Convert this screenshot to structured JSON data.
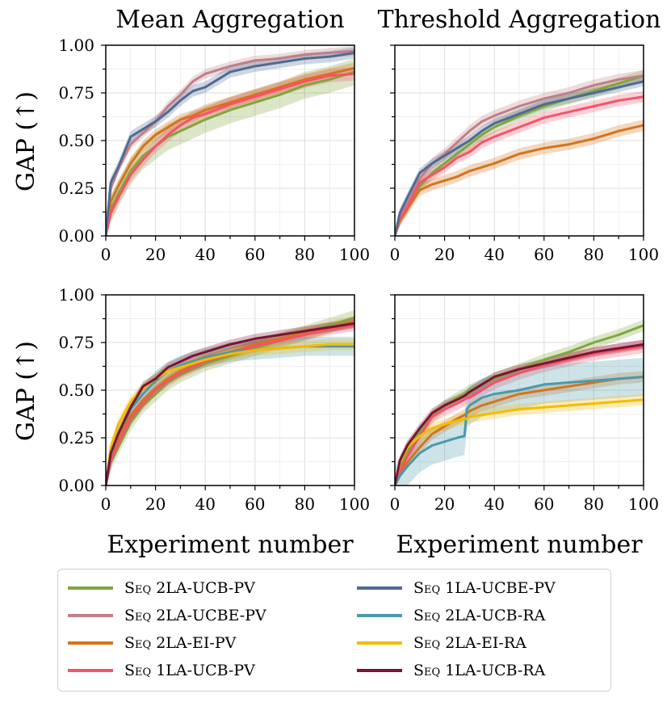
{
  "colors": {
    "green": "#7FA73A",
    "mauve": "#C07F86",
    "orange": "#D4741C",
    "pink": "#F4536B",
    "slate": "#4F6B93",
    "teal": "#4A99AC",
    "yellow": "#F5BB00",
    "maroon": "#7A1531"
  },
  "column_titles": [
    "Mean Aggregation",
    "Threshold Aggregation"
  ],
  "legend": {
    "entries": [
      {
        "prefix": "Seq",
        "name": "2LA-UCB-PV",
        "color": "#7FA73A"
      },
      {
        "prefix": "Seq",
        "name": "2LA-UCBE-PV",
        "color": "#C07F86"
      },
      {
        "prefix": "Seq",
        "name": "2LA-EI-PV",
        "color": "#D4741C"
      },
      {
        "prefix": "Seq",
        "name": "1LA-UCB-PV",
        "color": "#F4536B"
      },
      {
        "prefix": "Seq",
        "name": "1LA-UCBE-PV",
        "color": "#4F6B93"
      },
      {
        "prefix": "Seq",
        "name": "2LA-UCB-RA",
        "color": "#4A99AC"
      },
      {
        "prefix": "Seq",
        "name": "2LA-EI-RA",
        "color": "#F5BB00"
      },
      {
        "prefix": "Seq",
        "name": "1LA-UCB-RA",
        "color": "#7A1531"
      }
    ]
  },
  "chart_data": [
    {
      "type": "line",
      "panel": "top-left",
      "title": "Mean Aggregation",
      "xlabel": "",
      "ylabel": "GAP (↑)",
      "xlim": [
        0,
        100
      ],
      "ylim": [
        0,
        1
      ],
      "xticks": [
        "0",
        "20",
        "40",
        "60",
        "80",
        "100"
      ],
      "yticks": [
        "0.00",
        "0.25",
        "0.50",
        "0.75",
        "1.00"
      ],
      "x": [
        0,
        2,
        5,
        10,
        15,
        20,
        25,
        30,
        35,
        40,
        50,
        60,
        70,
        80,
        90,
        100
      ],
      "series": [
        {
          "name": "Seq 2LA-UCB-PV",
          "color": "#7FA73A",
          "band": 0.07,
          "values": [
            0,
            0.14,
            0.22,
            0.34,
            0.42,
            0.47,
            0.52,
            0.55,
            0.58,
            0.61,
            0.66,
            0.7,
            0.74,
            0.79,
            0.82,
            0.86
          ]
        },
        {
          "name": "Seq 2LA-UCBE-PV",
          "color": "#C07F86",
          "band": 0.025,
          "values": [
            0,
            0.25,
            0.35,
            0.48,
            0.54,
            0.6,
            0.68,
            0.74,
            0.81,
            0.85,
            0.89,
            0.92,
            0.93,
            0.95,
            0.96,
            0.97
          ]
        },
        {
          "name": "Seq 2LA-EI-PV",
          "color": "#D4741C",
          "band": 0.03,
          "values": [
            0,
            0.18,
            0.26,
            0.38,
            0.47,
            0.53,
            0.57,
            0.61,
            0.63,
            0.66,
            0.7,
            0.74,
            0.78,
            0.82,
            0.85,
            0.88
          ]
        },
        {
          "name": "Seq 1LA-UCB-PV",
          "color": "#F4536B",
          "band": 0.035,
          "values": [
            0,
            0.12,
            0.2,
            0.32,
            0.4,
            0.47,
            0.53,
            0.58,
            0.62,
            0.64,
            0.69,
            0.73,
            0.77,
            0.81,
            0.84,
            0.85
          ]
        },
        {
          "name": "Seq 1LA-UCBE-PV",
          "color": "#4F6B93",
          "band": 0.03,
          "values": [
            0,
            0.28,
            0.36,
            0.52,
            0.56,
            0.6,
            0.65,
            0.71,
            0.76,
            0.78,
            0.86,
            0.89,
            0.91,
            0.93,
            0.94,
            0.96
          ]
        }
      ]
    },
    {
      "type": "line",
      "panel": "top-right",
      "title": "Threshold Aggregation",
      "xlabel": "",
      "ylabel": "",
      "xlim": [
        0,
        100
      ],
      "ylim": [
        0,
        1
      ],
      "xticks": [
        "0",
        "20",
        "40",
        "60",
        "80",
        "100"
      ],
      "yticks": [
        "0.00",
        "0.25",
        "0.50",
        "0.75",
        "1.00"
      ],
      "x": [
        0,
        2,
        5,
        10,
        15,
        20,
        25,
        30,
        35,
        40,
        50,
        60,
        70,
        80,
        90,
        100
      ],
      "series": [
        {
          "name": "Seq 2LA-UCB-PV",
          "color": "#7FA73A",
          "band": 0.03,
          "values": [
            0,
            0.08,
            0.15,
            0.26,
            0.33,
            0.38,
            0.43,
            0.48,
            0.53,
            0.57,
            0.63,
            0.68,
            0.72,
            0.76,
            0.8,
            0.84
          ]
        },
        {
          "name": "Seq 2LA-UCBE-PV",
          "color": "#C07F86",
          "band": 0.03,
          "values": [
            0,
            0.1,
            0.17,
            0.3,
            0.38,
            0.43,
            0.49,
            0.55,
            0.6,
            0.63,
            0.68,
            0.72,
            0.75,
            0.79,
            0.82,
            0.84
          ]
        },
        {
          "name": "Seq 2LA-EI-PV",
          "color": "#D4741C",
          "band": 0.03,
          "values": [
            0,
            0.08,
            0.14,
            0.24,
            0.27,
            0.29,
            0.31,
            0.34,
            0.36,
            0.38,
            0.43,
            0.46,
            0.48,
            0.51,
            0.55,
            0.58
          ]
        },
        {
          "name": "Seq 1LA-UCB-PV",
          "color": "#F4536B",
          "band": 0.03,
          "values": [
            0,
            0.09,
            0.15,
            0.28,
            0.32,
            0.36,
            0.41,
            0.44,
            0.49,
            0.52,
            0.57,
            0.62,
            0.65,
            0.68,
            0.71,
            0.73
          ]
        },
        {
          "name": "Seq 1LA-UCBE-PV",
          "color": "#4F6B93",
          "band": 0.025,
          "values": [
            0,
            0.12,
            0.2,
            0.33,
            0.38,
            0.42,
            0.46,
            0.5,
            0.55,
            0.59,
            0.64,
            0.69,
            0.72,
            0.75,
            0.78,
            0.81
          ]
        }
      ]
    },
    {
      "type": "line",
      "panel": "bottom-left",
      "title": "",
      "xlabel": "Experiment number",
      "ylabel": "GAP (↑)",
      "xlim": [
        0,
        100
      ],
      "ylim": [
        0,
        1
      ],
      "xticks": [
        "0",
        "20",
        "40",
        "60",
        "80",
        "100"
      ],
      "yticks": [
        "0.00",
        "0.25",
        "0.50",
        "0.75",
        "1.00"
      ],
      "x": [
        0,
        2,
        5,
        10,
        15,
        20,
        25,
        30,
        35,
        40,
        50,
        60,
        70,
        80,
        90,
        100
      ],
      "series": [
        {
          "name": "Seq 2LA-UCB-PV",
          "color": "#7FA73A",
          "band": 0.04,
          "values": [
            0,
            0.12,
            0.2,
            0.33,
            0.42,
            0.48,
            0.54,
            0.58,
            0.61,
            0.64,
            0.68,
            0.72,
            0.76,
            0.8,
            0.84,
            0.88
          ]
        },
        {
          "name": "Seq 2LA-EI-PV",
          "color": "#D4741C",
          "band": 0.03,
          "values": [
            0,
            0.15,
            0.24,
            0.37,
            0.45,
            0.51,
            0.56,
            0.6,
            0.63,
            0.66,
            0.7,
            0.74,
            0.77,
            0.8,
            0.83,
            0.86
          ]
        },
        {
          "name": "Seq 1LA-UCB-PV",
          "color": "#F4536B",
          "band": 0.03,
          "values": [
            0,
            0.13,
            0.22,
            0.35,
            0.43,
            0.5,
            0.55,
            0.59,
            0.62,
            0.65,
            0.69,
            0.73,
            0.76,
            0.79,
            0.82,
            0.84
          ]
        },
        {
          "name": "Seq 2LA-UCB-RA",
          "color": "#4A99AC",
          "band": 0.05,
          "values": [
            0,
            0.16,
            0.27,
            0.4,
            0.48,
            0.55,
            0.6,
            0.63,
            0.65,
            0.67,
            0.7,
            0.71,
            0.72,
            0.73,
            0.73,
            0.73
          ]
        },
        {
          "name": "Seq 2LA-EI-RA",
          "color": "#F5BB00",
          "band": 0.03,
          "values": [
            0,
            0.2,
            0.32,
            0.44,
            0.51,
            0.56,
            0.6,
            0.62,
            0.64,
            0.66,
            0.69,
            0.71,
            0.72,
            0.73,
            0.74,
            0.74
          ]
        },
        {
          "name": "Seq 1LA-UCB-RA",
          "color": "#7A1531",
          "band": 0.025,
          "values": [
            0,
            0.17,
            0.27,
            0.41,
            0.52,
            0.56,
            0.62,
            0.65,
            0.68,
            0.7,
            0.74,
            0.77,
            0.79,
            0.81,
            0.83,
            0.85
          ]
        }
      ]
    },
    {
      "type": "line",
      "panel": "bottom-right",
      "title": "",
      "xlabel": "Experiment number",
      "ylabel": "",
      "xlim": [
        0,
        100
      ],
      "ylim": [
        0,
        1
      ],
      "xticks": [
        "0",
        "20",
        "40",
        "60",
        "80",
        "100"
      ],
      "yticks": [
        "0.00",
        "0.25",
        "0.50",
        "0.75",
        "1.00"
      ],
      "x": [
        0,
        2,
        5,
        10,
        15,
        20,
        25,
        28,
        29,
        30,
        35,
        40,
        50,
        60,
        70,
        80,
        90,
        100
      ],
      "series": [
        {
          "name": "Seq 2LA-UCB-PV",
          "color": "#7FA73A",
          "band": 0.03,
          "values": [
            0,
            0.1,
            0.17,
            0.28,
            0.36,
            0.42,
            0.46,
            0.48,
            0.49,
            0.5,
            0.53,
            0.56,
            0.61,
            0.66,
            0.7,
            0.75,
            0.79,
            0.84
          ]
        },
        {
          "name": "Seq 2LA-EI-PV",
          "color": "#D4741C",
          "band": 0.03,
          "values": [
            0,
            0.07,
            0.12,
            0.2,
            0.27,
            0.31,
            0.35,
            0.37,
            0.38,
            0.39,
            0.42,
            0.44,
            0.48,
            0.5,
            0.52,
            0.54,
            0.56,
            0.57
          ]
        },
        {
          "name": "Seq 1LA-UCB-PV",
          "color": "#F4536B",
          "band": 0.035,
          "values": [
            0,
            0.08,
            0.15,
            0.26,
            0.36,
            0.4,
            0.43,
            0.45,
            0.46,
            0.46,
            0.5,
            0.54,
            0.59,
            0.63,
            0.66,
            0.69,
            0.71,
            0.73
          ]
        },
        {
          "name": "Seq 2LA-UCB-RA",
          "color": "#4A99AC",
          "band": 0.1,
          "values": [
            0,
            0.05,
            0.1,
            0.17,
            0.21,
            0.23,
            0.25,
            0.26,
            0.4,
            0.42,
            0.46,
            0.48,
            0.5,
            0.53,
            0.54,
            0.55,
            0.56,
            0.57
          ]
        },
        {
          "name": "Seq 2LA-EI-RA",
          "color": "#F5BB00",
          "band": 0.03,
          "values": [
            0,
            0.12,
            0.2,
            0.26,
            0.3,
            0.32,
            0.34,
            0.35,
            0.35,
            0.36,
            0.37,
            0.38,
            0.4,
            0.41,
            0.42,
            0.43,
            0.44,
            0.45
          ]
        },
        {
          "name": "Seq 1LA-UCB-RA",
          "color": "#7A1531",
          "band": 0.025,
          "values": [
            0,
            0.13,
            0.21,
            0.3,
            0.38,
            0.42,
            0.45,
            0.47,
            0.48,
            0.49,
            0.53,
            0.57,
            0.61,
            0.64,
            0.67,
            0.7,
            0.72,
            0.74
          ]
        }
      ]
    }
  ]
}
